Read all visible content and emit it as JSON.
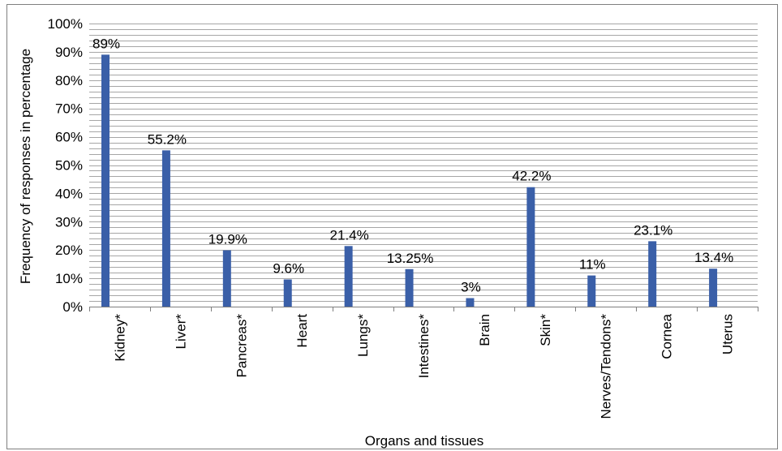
{
  "chart_data": {
    "type": "bar",
    "title": "",
    "xlabel": "Organs and tissues",
    "ylabel": "Frequency of responses in percentage",
    "categories": [
      "Kidney*",
      "Liver*",
      "Pancreas*",
      "Heart",
      "Lungs*",
      "Intestines*",
      "Brain",
      "Skin*",
      "Nerves/Tendons*",
      "Cornea",
      "Uterus"
    ],
    "values": [
      89,
      55.2,
      19.9,
      9.6,
      21.4,
      13.25,
      3,
      42.2,
      11,
      23.1,
      13.4
    ],
    "data_labels": [
      "89%",
      "55.2%",
      "19.9%",
      "9.6%",
      "21.4%",
      "13.25%",
      "3%",
      "42.2%",
      "11%",
      "23.1%",
      "13.4%"
    ],
    "ylim": [
      0,
      100
    ],
    "yticks": [
      0,
      10,
      20,
      30,
      40,
      50,
      60,
      70,
      80,
      90,
      100
    ],
    "ytick_labels": [
      "0%",
      "10%",
      "20%",
      "30%",
      "40%",
      "50%",
      "60%",
      "70%",
      "80%",
      "90%",
      "100%"
    ],
    "minor_grid_step": 2,
    "grid": true,
    "legend": "none",
    "bar_color": "#3a5fa8",
    "grid_color": "#a6a6a6"
  }
}
